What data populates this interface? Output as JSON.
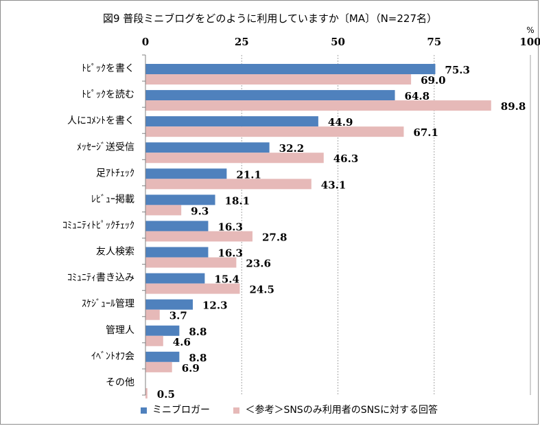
{
  "title": "図9 普段ミニブログをどのように利用していますか〔MA〕（N=227名）",
  "colors": {
    "series1": "#4f81bd",
    "series2": "#e6b9b8",
    "grid": "#a6a6a6"
  },
  "chart_data": {
    "type": "bar",
    "orientation": "horizontal",
    "unit_label": "%",
    "xlim": [
      0,
      100
    ],
    "x_ticks": [
      0,
      25,
      50,
      75,
      100
    ],
    "grid": true,
    "legend_position": "bottom",
    "categories": [
      "ﾄﾋﾟｯｸを書く",
      "ﾄﾋﾟｯｸを読む",
      "人にｺﾒﾝﾄを書く",
      "ﾒｯｾｰｼﾞ送受信",
      "足ｱﾄﾁｪｯｸ",
      "ﾚﾋﾞｭｰ掲載",
      "ｺﾐｭﾆﾃｨﾄﾋﾟｯｸﾁｪｯｸ",
      "友人検索",
      "ｺﾐｭﾆﾃｨ書き込み",
      "ｽｹｼﾞｭｰﾙ管理",
      "管理人",
      "ｲﾍﾞﾝﾄｵﾌ会",
      "その他"
    ],
    "series": [
      {
        "name": "ミニブロガー",
        "values": [
          75.3,
          64.8,
          44.9,
          32.2,
          21.1,
          18.1,
          16.3,
          16.3,
          15.4,
          12.3,
          8.8,
          8.8,
          null
        ]
      },
      {
        "name": "＜参考＞SNSのみ利用者のSNSに対する回答",
        "values": [
          69.0,
          89.8,
          67.1,
          46.3,
          43.1,
          9.3,
          27.8,
          23.6,
          24.5,
          3.7,
          4.6,
          6.9,
          0.5
        ]
      }
    ]
  }
}
